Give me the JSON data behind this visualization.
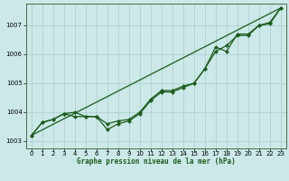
{
  "title": "Graphe pression niveau de la mer (hPa)",
  "background_color": "#cce8e8",
  "line_color": "#1a5c1a",
  "grid_color": "#aacccc",
  "x_ticks": [
    0,
    1,
    2,
    3,
    4,
    5,
    6,
    7,
    8,
    9,
    10,
    11,
    12,
    13,
    14,
    15,
    16,
    17,
    18,
    19,
    20,
    21,
    22,
    23
  ],
  "y_ticks": [
    1003,
    1004,
    1005,
    1006,
    1007
  ],
  "ylim": [
    1002.75,
    1007.75
  ],
  "xlim": [
    -0.5,
    23.5
  ],
  "series_actual": [
    1003.2,
    1003.65,
    1003.75,
    1003.95,
    1003.85,
    1003.85,
    1003.85,
    1003.4,
    1003.6,
    1003.7,
    1003.95,
    1004.4,
    1004.7,
    1004.7,
    1004.85,
    1005.0,
    1005.5,
    1006.1,
    1006.3,
    1006.65,
    1006.65,
    1007.0,
    1007.05,
    1007.6
  ],
  "series_smooth": [
    1003.2,
    1003.65,
    1003.75,
    1003.95,
    1004.0,
    1003.85,
    1003.85,
    1003.6,
    1003.7,
    1003.75,
    1004.0,
    1004.45,
    1004.75,
    1004.75,
    1004.9,
    1005.0,
    1005.5,
    1006.25,
    1006.1,
    1006.7,
    1006.7,
    1007.0,
    1007.1,
    1007.6
  ],
  "trend_line": [
    1003.2,
    1007.6
  ]
}
